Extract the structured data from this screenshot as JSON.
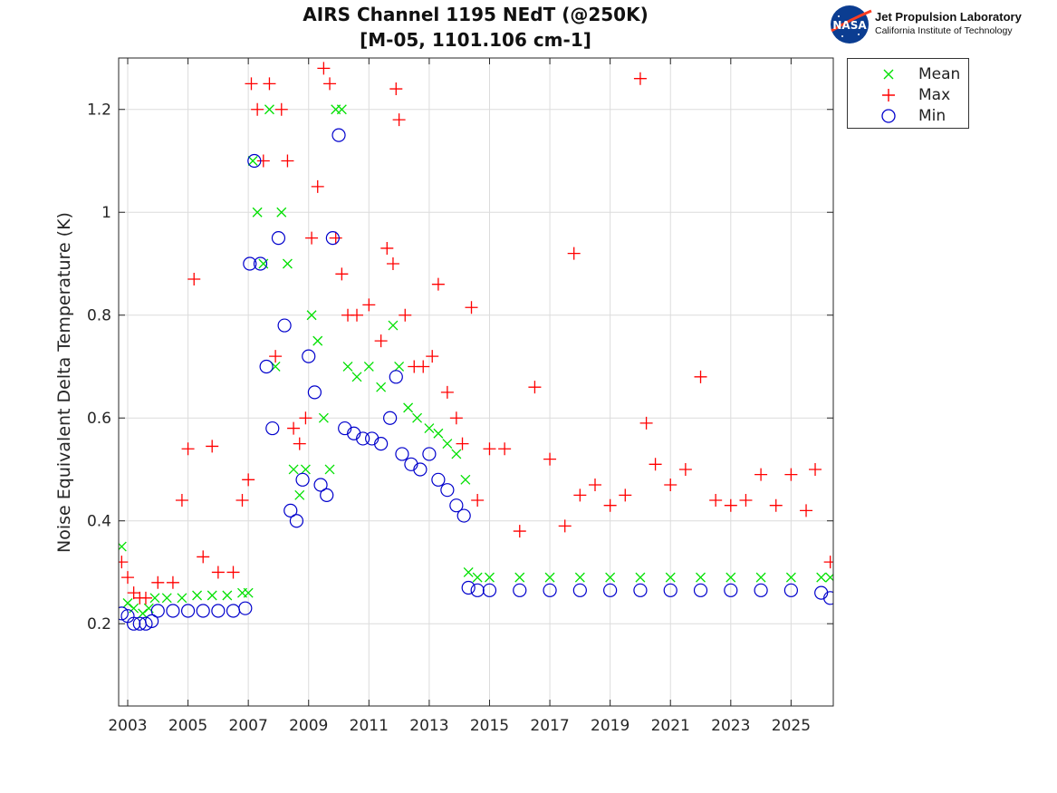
{
  "titles": {
    "line1": "AIRS Channel 1195 NEdT (@250K)",
    "line2": "[M-05, 1101.106 cm-1]"
  },
  "logo": {
    "badge": "NASA",
    "org": "Jet Propulsion Laboratory",
    "sub": "California Institute of Technology"
  },
  "chart_data": {
    "type": "scatter",
    "title": "AIRS Channel 1195 NEdT (@250K)",
    "subtitle": "[M-05, 1101.106 cm-1]",
    "xlabel": "",
    "ylabel": "Noise Equivalent Delta Temperature (K)",
    "xlim": [
      2002.7,
      2026.4
    ],
    "ylim": [
      0.04,
      1.3
    ],
    "xticks": [
      "2003",
      "2005",
      "2007",
      "2009",
      "2011",
      "2013",
      "2015",
      "2017",
      "2019",
      "2021",
      "2023",
      "2025"
    ],
    "yticks": [
      "0.2",
      "0.4",
      "0.6",
      "0.8",
      "1",
      "1.2"
    ],
    "grid": true,
    "legend": "outside-top-right",
    "colors": {
      "Mean": "#00e000",
      "Max": "#ff0000",
      "Min": "#0000cc"
    },
    "series": [
      {
        "name": "Mean",
        "marker": "x",
        "x": [
          2002.8,
          2003.0,
          2003.2,
          2003.5,
          2003.7,
          2003.9,
          2004.3,
          2004.8,
          2005.3,
          2005.8,
          2006.3,
          2006.8,
          2007.0,
          2007.15,
          2007.3,
          2007.5,
          2007.7,
          2007.9,
          2008.1,
          2008.3,
          2008.5,
          2008.7,
          2008.9,
          2009.1,
          2009.3,
          2009.5,
          2009.7,
          2009.9,
          2010.1,
          2010.3,
          2010.6,
          2011.0,
          2011.4,
          2011.8,
          2012.0,
          2012.3,
          2012.6,
          2013.0,
          2013.3,
          2013.6,
          2013.9,
          2014.2,
          2014.3,
          2014.6,
          2015.0,
          2016.0,
          2017.0,
          2018.0,
          2019.0,
          2020.0,
          2021.0,
          2022.0,
          2023.0,
          2024.0,
          2025.0,
          2026.0,
          2026.3
        ],
        "y": [
          0.35,
          0.24,
          0.23,
          0.22,
          0.23,
          0.25,
          0.25,
          0.25,
          0.255,
          0.255,
          0.255,
          0.26,
          0.26,
          1.1,
          1.0,
          0.9,
          1.2,
          0.7,
          1.0,
          0.9,
          0.5,
          0.45,
          0.5,
          0.8,
          0.75,
          0.6,
          0.5,
          1.2,
          1.2,
          0.7,
          0.68,
          0.7,
          0.66,
          0.78,
          0.7,
          0.62,
          0.6,
          0.58,
          0.57,
          0.55,
          0.53,
          0.48,
          0.3,
          0.29,
          0.29,
          0.29,
          0.29,
          0.29,
          0.29,
          0.29,
          0.29,
          0.29,
          0.29,
          0.29,
          0.29,
          0.29,
          0.29
        ]
      },
      {
        "name": "Max",
        "marker": "+",
        "x": [
          2002.8,
          2003.0,
          2003.2,
          2003.4,
          2003.6,
          2004.0,
          2004.5,
          2004.8,
          2005.0,
          2005.2,
          2005.5,
          2005.8,
          2006.0,
          2006.5,
          2006.8,
          2007.0,
          2007.1,
          2007.3,
          2007.5,
          2007.7,
          2007.9,
          2008.1,
          2008.3,
          2008.5,
          2008.7,
          2008.9,
          2009.1,
          2009.3,
          2009.5,
          2009.7,
          2009.9,
          2010.1,
          2010.3,
          2010.6,
          2011.0,
          2011.4,
          2011.6,
          2011.8,
          2011.9,
          2012.0,
          2012.2,
          2012.5,
          2012.8,
          2013.1,
          2013.3,
          2013.6,
          2013.9,
          2014.1,
          2014.4,
          2014.6,
          2015.0,
          2015.5,
          2016.0,
          2016.5,
          2017.0,
          2017.5,
          2017.8,
          2018.0,
          2018.5,
          2019.0,
          2019.5,
          2020.0,
          2020.2,
          2020.5,
          2021.0,
          2021.5,
          2022.0,
          2022.5,
          2023.0,
          2023.5,
          2024.0,
          2024.5,
          2025.0,
          2025.5,
          2025.8,
          2026.3
        ],
        "y": [
          0.32,
          0.29,
          0.26,
          0.25,
          0.25,
          0.28,
          0.28,
          0.44,
          0.54,
          0.87,
          0.33,
          0.545,
          0.3,
          0.3,
          0.44,
          0.48,
          1.25,
          1.2,
          1.1,
          1.25,
          0.72,
          1.2,
          1.1,
          0.58,
          0.55,
          0.6,
          0.95,
          1.05,
          1.28,
          1.25,
          0.95,
          0.88,
          0.8,
          0.8,
          0.82,
          0.75,
          0.93,
          0.9,
          1.24,
          1.18,
          0.8,
          0.7,
          0.7,
          0.72,
          0.86,
          0.65,
          0.6,
          0.55,
          0.815,
          0.44,
          0.54,
          0.54,
          0.38,
          0.66,
          0.52,
          0.39,
          0.92,
          0.45,
          0.47,
          0.43,
          0.45,
          1.26,
          0.59,
          0.51,
          0.47,
          0.5,
          0.68,
          0.44,
          0.43,
          0.44,
          0.49,
          0.43,
          0.49,
          0.42,
          0.5,
          0.32
        ]
      },
      {
        "name": "Min",
        "marker": "o",
        "x": [
          2002.8,
          2003.0,
          2003.2,
          2003.4,
          2003.6,
          2003.8,
          2004.0,
          2004.5,
          2005.0,
          2005.5,
          2006.0,
          2006.5,
          2006.9,
          2007.05,
          2007.2,
          2007.4,
          2007.6,
          2007.8,
          2008.0,
          2008.2,
          2008.4,
          2008.6,
          2008.8,
          2009.0,
          2009.2,
          2009.4,
          2009.6,
          2009.8,
          2010.0,
          2010.2,
          2010.5,
          2010.8,
          2011.1,
          2011.4,
          2011.7,
          2011.9,
          2012.1,
          2012.4,
          2012.7,
          2013.0,
          2013.3,
          2013.6,
          2013.9,
          2014.15,
          2014.3,
          2014.6,
          2015.0,
          2016.0,
          2017.0,
          2018.0,
          2019.0,
          2020.0,
          2021.0,
          2022.0,
          2023.0,
          2024.0,
          2025.0,
          2026.0,
          2026.3
        ],
        "y": [
          0.22,
          0.215,
          0.2,
          0.2,
          0.2,
          0.205,
          0.225,
          0.225,
          0.225,
          0.225,
          0.225,
          0.225,
          0.23,
          0.9,
          1.1,
          0.9,
          0.7,
          0.58,
          0.95,
          0.78,
          0.42,
          0.4,
          0.48,
          0.72,
          0.65,
          0.47,
          0.45,
          0.95,
          1.15,
          0.58,
          0.57,
          0.56,
          0.56,
          0.55,
          0.6,
          0.68,
          0.53,
          0.51,
          0.5,
          0.53,
          0.48,
          0.46,
          0.43,
          0.41,
          0.27,
          0.265,
          0.265,
          0.265,
          0.265,
          0.265,
          0.265,
          0.265,
          0.265,
          0.265,
          0.265,
          0.265,
          0.265,
          0.26,
          0.25
        ]
      }
    ]
  }
}
